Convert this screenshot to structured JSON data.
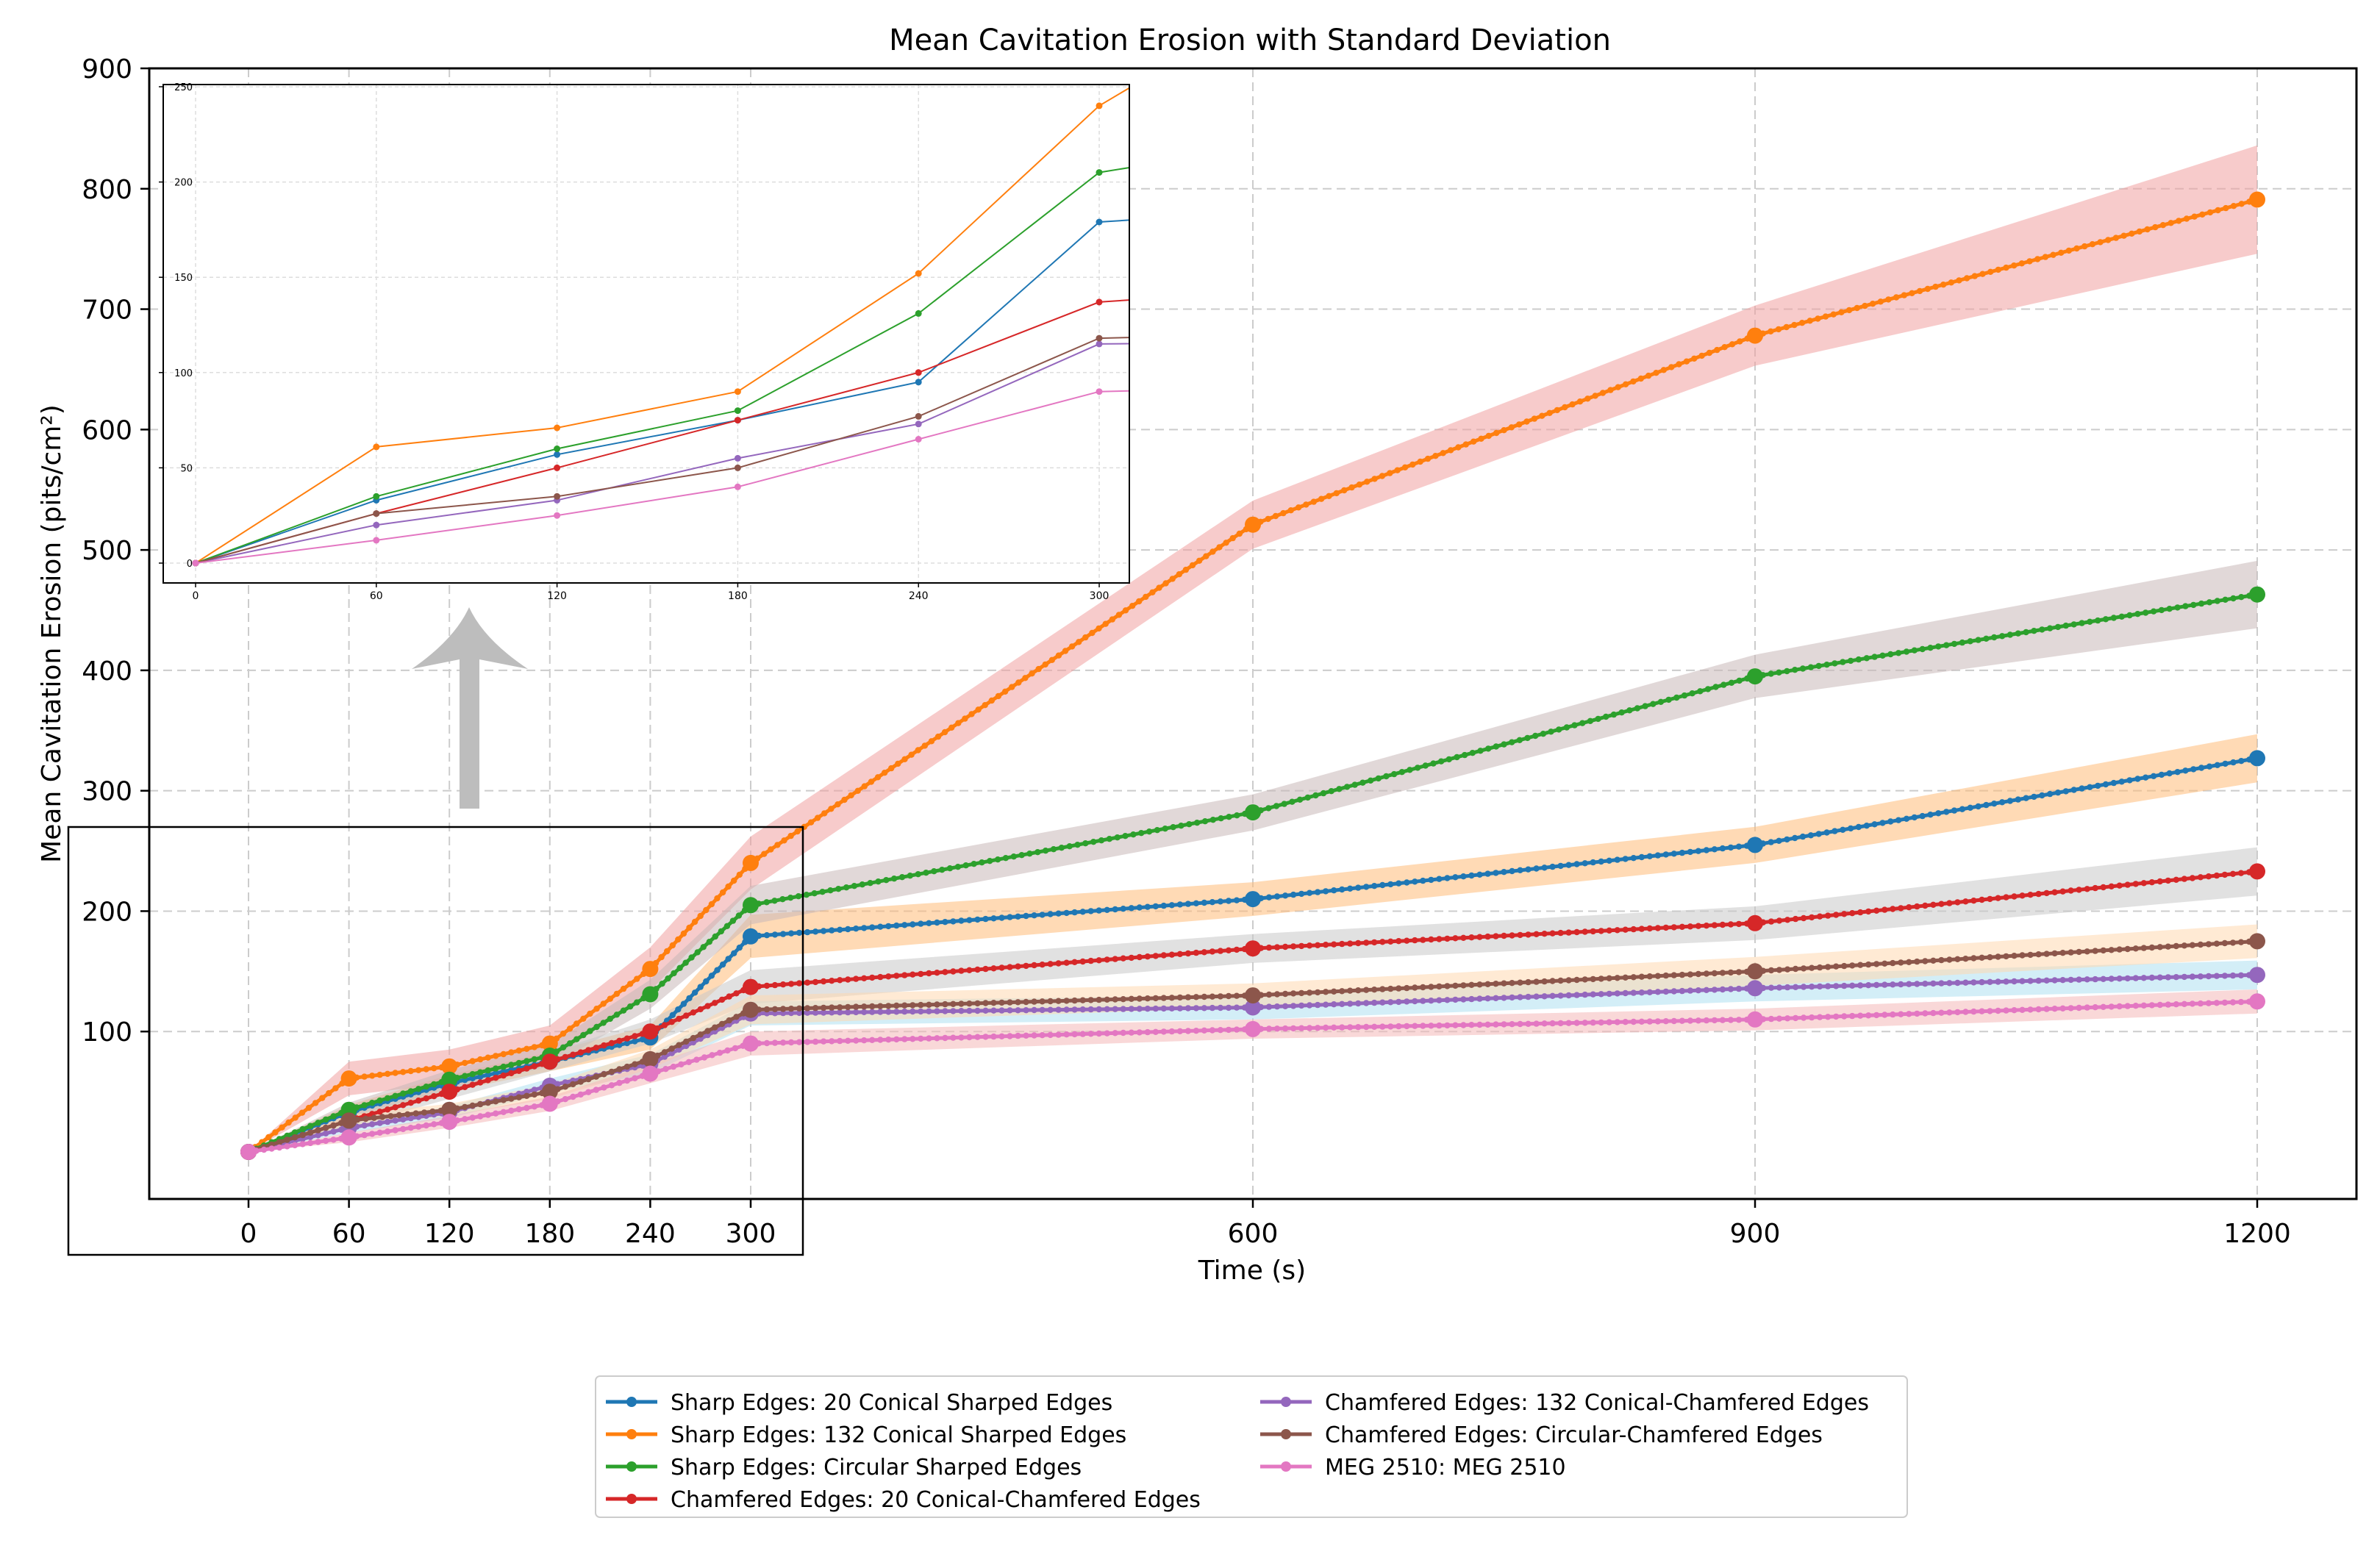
{
  "chart_data": {
    "type": "line",
    "title": "Mean Cavitation Erosion with Standard Deviation",
    "xlabel": "Time (s)",
    "ylabel": "Mean Cavitation Erosion (pits/cm²)",
    "x": [
      0,
      60,
      120,
      180,
      240,
      300,
      600,
      900,
      1200
    ],
    "x_ticks": [
      "0",
      "60",
      "120",
      "180",
      "240",
      "300",
      "600",
      "900",
      "1200"
    ],
    "y_ticks": [
      "100",
      "200",
      "300",
      "400",
      "500",
      "600",
      "700",
      "800",
      "900"
    ],
    "ylim": [
      -40,
      900
    ],
    "grid": true,
    "legend_position": "below plot, two columns",
    "series": [
      {
        "name": "Sharp Edges: 20 Conical Sharped Edges",
        "color": "#1f77b4",
        "band_color": "#ffbb78",
        "values": [
          0,
          33,
          57,
          75,
          95,
          179,
          210,
          255,
          327
        ],
        "std": [
          0,
          6,
          7,
          8,
          10,
          18,
          14,
          15,
          20
        ]
      },
      {
        "name": "Sharp Edges: 132 Conical Sharped Edges",
        "color": "#ff7f0e",
        "band_color": "#f0a0a0",
        "values": [
          0,
          61,
          71,
          90,
          152,
          240,
          521,
          678,
          791
        ],
        "std": [
          0,
          14,
          14,
          15,
          18,
          22,
          20,
          25,
          45
        ]
      },
      {
        "name": "Sharp Edges: Circular Sharped Edges",
        "color": "#2ca02c",
        "band_color": "#c8b8b8",
        "values": [
          0,
          35,
          60,
          80,
          131,
          205,
          282,
          395,
          463
        ],
        "std": [
          0,
          6,
          8,
          9,
          12,
          16,
          15,
          18,
          28
        ]
      },
      {
        "name": "Chamfered Edges: 20 Conical-Chamfered Edges",
        "color": "#d62728",
        "band_color": "#c8c8c8",
        "values": [
          0,
          26,
          50,
          75,
          100,
          137,
          169,
          190,
          233
        ],
        "std": [
          0,
          5,
          6,
          8,
          10,
          14,
          12,
          14,
          20
        ]
      },
      {
        "name": "Chamfered Edges: 132 Conical-Chamfered Edges",
        "color": "#9467bd",
        "band_color": "#aee0f0",
        "values": [
          0,
          20,
          33,
          55,
          73,
          115,
          120,
          136,
          147
        ],
        "std": [
          0,
          4,
          5,
          6,
          8,
          10,
          10,
          11,
          12
        ]
      },
      {
        "name": "Chamfered Edges: Circular-Chamfered Edges",
        "color": "#8c564b",
        "band_color": "#ffd8b0",
        "values": [
          0,
          26,
          35,
          50,
          77,
          118,
          130,
          150,
          175
        ],
        "std": [
          0,
          5,
          5,
          6,
          8,
          12,
          10,
          12,
          14
        ]
      },
      {
        "name": "MEG 2510: MEG 2510",
        "color": "#e377c2",
        "band_color": "#f4b8b8",
        "values": [
          0,
          12,
          25,
          40,
          65,
          90,
          102,
          110,
          125
        ],
        "std": [
          0,
          4,
          5,
          6,
          8,
          10,
          8,
          9,
          10
        ]
      }
    ],
    "inset": {
      "x": [
        0,
        60,
        120,
        180,
        240,
        300
      ],
      "x_ticks": [
        "0",
        "60",
        "120",
        "180",
        "240",
        "300"
      ],
      "y_ticks": [
        "0",
        "50",
        "100",
        "150",
        "200",
        "250"
      ],
      "ylim": [
        0,
        250
      ],
      "xlim": [
        0,
        310
      ],
      "grid": true
    }
  }
}
